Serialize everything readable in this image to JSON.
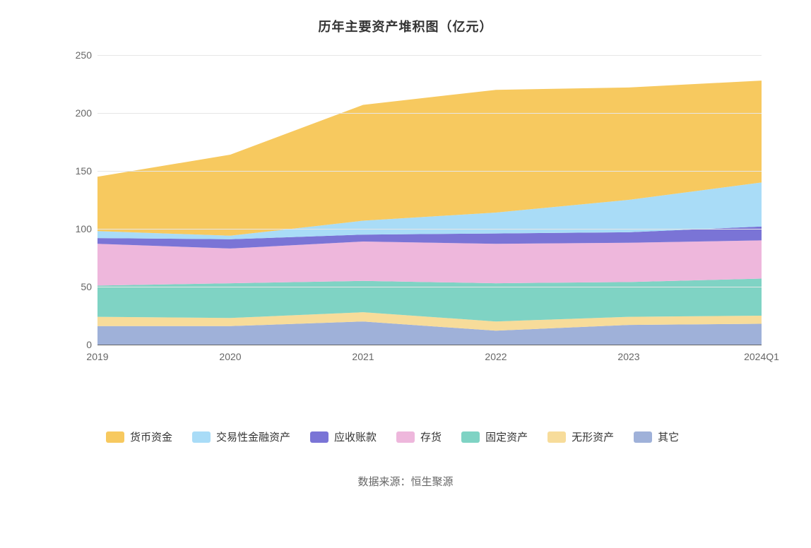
{
  "chart": {
    "type": "stacked-area",
    "title": "历年主要资产堆积图（亿元）",
    "title_fontsize": 18,
    "title_fontweight": 700,
    "background_color": "#ffffff",
    "grid_color": "#e6e6e6",
    "axis_label_color": "#666666",
    "axis_label_fontsize": 14,
    "categories": [
      "2019",
      "2020",
      "2021",
      "2022",
      "2023",
      "2024Q1"
    ],
    "ylim": [
      0,
      250
    ],
    "ytick_step": 50,
    "yticks": [
      0,
      50,
      100,
      150,
      200,
      250
    ],
    "series": [
      {
        "key": "cash",
        "label": "货币资金",
        "color": "#f7c95f",
        "values": [
          47,
          70,
          100,
          106,
          97,
          88
        ]
      },
      {
        "key": "trading_fin",
        "label": "交易性金融资产",
        "color": "#a9dcf7",
        "values": [
          6,
          3,
          12,
          18,
          28,
          38
        ]
      },
      {
        "key": "receivables",
        "label": "应收账款",
        "color": "#7a74d6",
        "values": [
          5,
          8,
          6,
          9,
          9,
          12
        ]
      },
      {
        "key": "inventory",
        "label": "存货",
        "color": "#eeb7dc",
        "values": [
          36,
          30,
          34,
          34,
          34,
          33
        ]
      },
      {
        "key": "fixed",
        "label": "固定资产",
        "color": "#7fd3c4",
        "values": [
          27,
          30,
          27,
          33,
          30,
          32
        ]
      },
      {
        "key": "intangible",
        "label": "无形资产",
        "color": "#f7dc9a",
        "values": [
          8,
          7,
          8,
          8,
          7,
          7
        ]
      },
      {
        "key": "other",
        "label": "其它",
        "color": "#9fb1d9",
        "values": [
          16,
          16,
          20,
          12,
          17,
          18
        ]
      }
    ],
    "stack_totals": [
      145,
      164,
      207,
      220,
      222,
      228
    ],
    "legend": {
      "fontsize": 15,
      "swatch_w": 26,
      "swatch_h": 16,
      "position": "bottom"
    }
  },
  "source": {
    "label": "数据来源：",
    "name": "恒生聚源",
    "color": "#666666",
    "fontsize": 15
  }
}
